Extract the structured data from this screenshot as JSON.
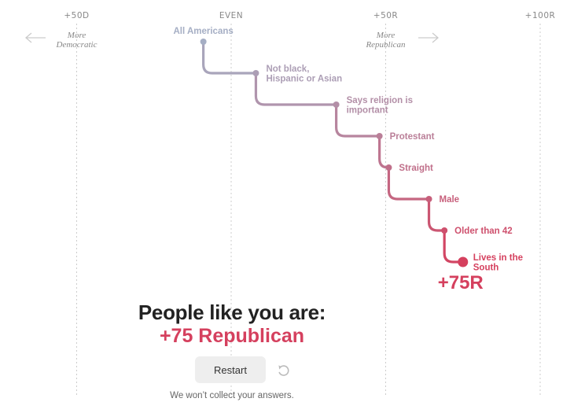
{
  "colors": {
    "democrat_gray": "#a5aec4",
    "republican": "#d5405e",
    "heading": "#222222",
    "axis": "#888888"
  },
  "chart_data": {
    "type": "step",
    "title": "People like you are:",
    "x_axis": {
      "min": -75,
      "max": 110,
      "ticks": [
        {
          "value": -50,
          "label": "+50D"
        },
        {
          "value": 0,
          "label": "EVEN"
        },
        {
          "value": 50,
          "label": "+50R"
        },
        {
          "value": 100,
          "label": "+100R"
        }
      ],
      "left_note": [
        "More",
        "Democratic"
      ],
      "right_note": [
        "More",
        "Republican"
      ]
    },
    "steps": [
      {
        "label": [
          "All Americans"
        ],
        "value": -9
      },
      {
        "label": [
          "Not black,",
          "Hispanic or Asian"
        ],
        "value": 8
      },
      {
        "label": [
          "Says religion is",
          "important"
        ],
        "value": 34
      },
      {
        "label": [
          "Protestant"
        ],
        "value": 48
      },
      {
        "label": [
          "Straight"
        ],
        "value": 51
      },
      {
        "label": [
          "Male"
        ],
        "value": 64
      },
      {
        "label": [
          "Older than 42"
        ],
        "value": 69
      },
      {
        "label": [
          "Lives in the",
          "South"
        ],
        "value": 75
      }
    ],
    "final_label": "+75R"
  },
  "result": {
    "heading": "People like you are:",
    "value_text": "+75 Republican"
  },
  "controls": {
    "restart_label": "Restart",
    "restart_icon": "undo-icon"
  },
  "note": "We won’t collect your answers."
}
